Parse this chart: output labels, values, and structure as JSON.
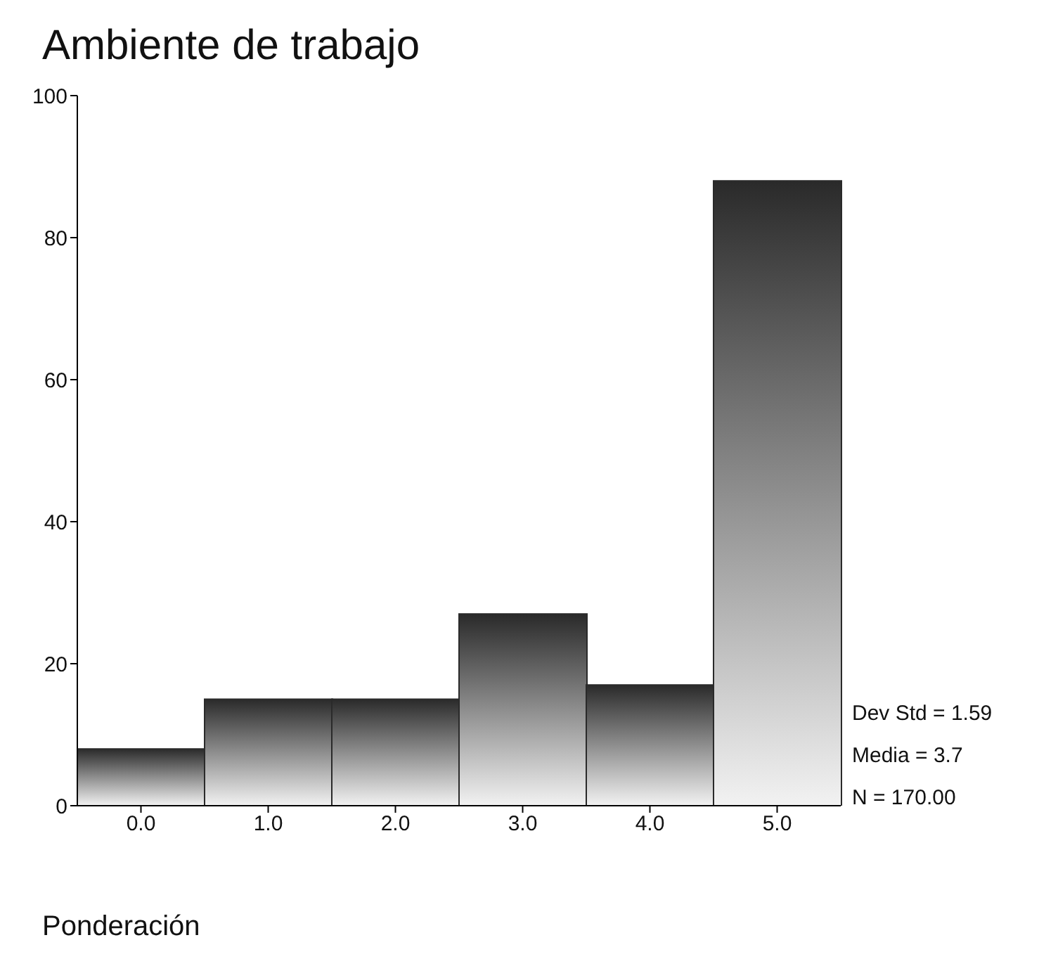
{
  "chart_data": {
    "type": "bar",
    "title": "Ambiente de trabajo",
    "xlabel": "Ponderación",
    "categories": [
      "0.0",
      "1.0",
      "2.0",
      "3.0",
      "4.0",
      "5.0"
    ],
    "values": [
      8,
      15,
      15,
      27,
      17,
      88
    ],
    "color": "#2a2a2a",
    "ylim": [
      0,
      100
    ],
    "yticks": [
      0,
      20,
      40,
      60,
      80,
      100
    ],
    "grid": false,
    "legend": false,
    "annotations": [
      "Dev Std = 1.59",
      "Media = 3.7",
      "N = 170.00"
    ]
  }
}
